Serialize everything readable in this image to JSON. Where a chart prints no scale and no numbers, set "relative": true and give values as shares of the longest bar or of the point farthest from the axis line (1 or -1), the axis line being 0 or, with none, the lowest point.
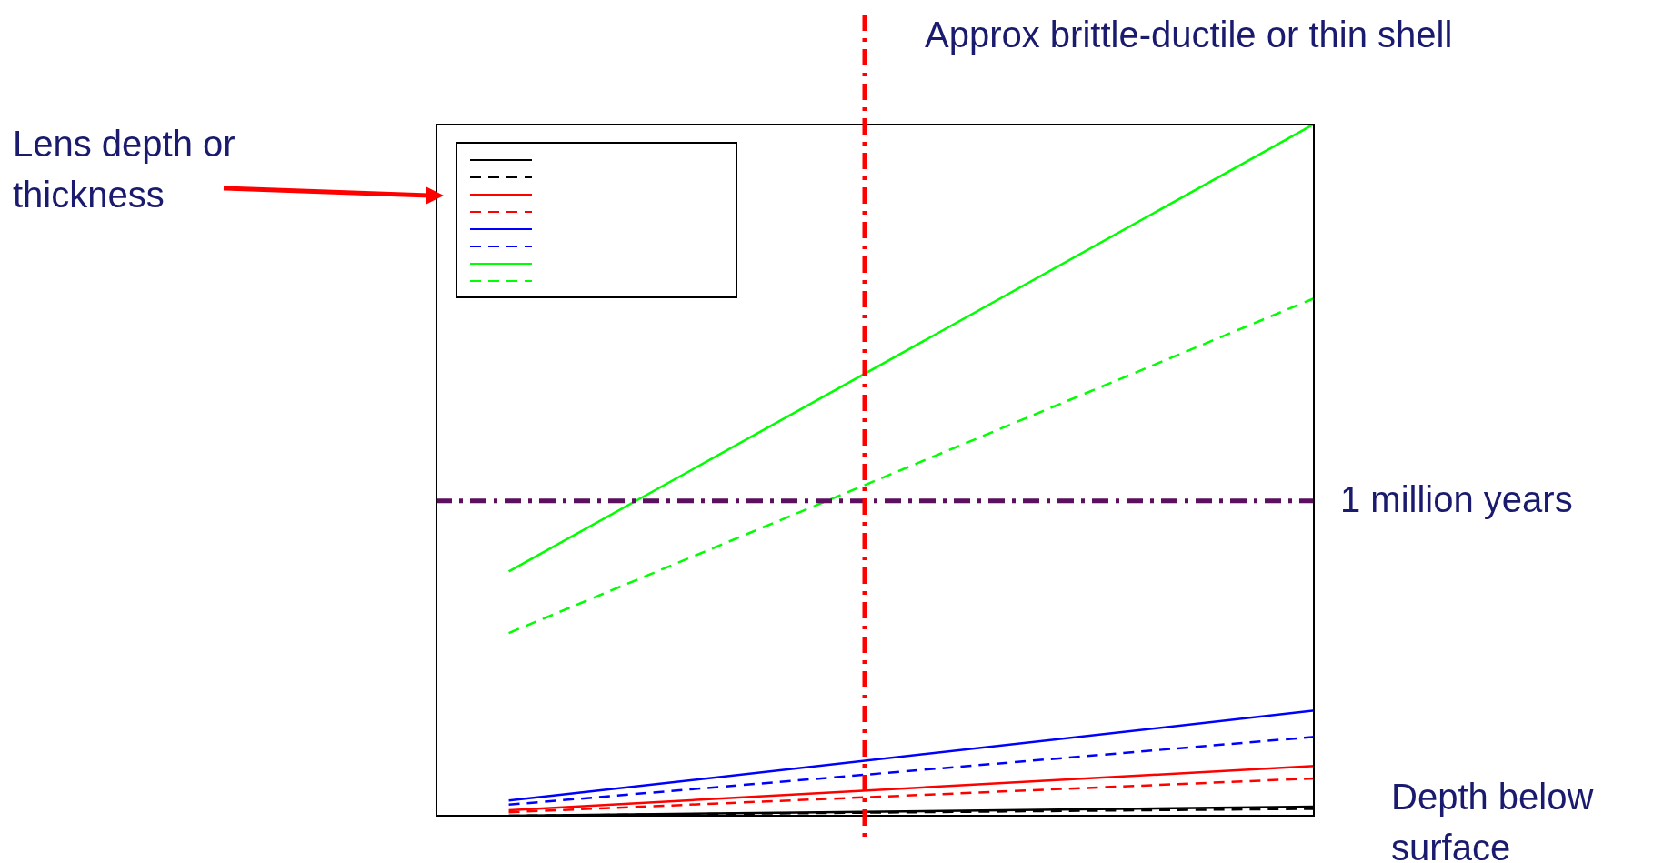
{
  "chart_data": {
    "type": "line",
    "relative": true,
    "xlabel": "Depth below surface",
    "annotations": [
      "Lens depth or thickness",
      "Approx brittle-ductile or thin shell"
    ],
    "categories": [
      null,
      null,
      null,
      null,
      null,
      null,
      null,
      null,
      null,
      null,
      null,
      null,
      null
    ],
    "series": [
      {
        "color": "#000000",
        "line_style": "solid",
        "values": [
          null,
          0,
          null,
          null,
          null,
          null,
          null,
          null,
          null,
          null,
          null,
          null,
          0.013
        ]
      },
      {
        "color": "#000000",
        "line_style": "dashed",
        "values": [
          null,
          0,
          null,
          null,
          null,
          null,
          null,
          null,
          null,
          null,
          null,
          null,
          0.01
        ]
      },
      {
        "color": "#ff0000",
        "line_style": "solid",
        "values": [
          null,
          0.008,
          null,
          null,
          null,
          null,
          null,
          null,
          null,
          null,
          null,
          null,
          0.072
        ]
      },
      {
        "color": "#ff0000",
        "line_style": "dashed",
        "values": [
          null,
          0.005,
          null,
          null,
          null,
          null,
          null,
          null,
          null,
          null,
          null,
          null,
          0.054
        ]
      },
      {
        "color": "#0000ff",
        "line_style": "solid",
        "values": [
          null,
          0.022,
          null,
          null,
          null,
          null,
          null,
          null,
          null,
          null,
          null,
          null,
          0.152
        ]
      },
      {
        "color": "#0000ff",
        "line_style": "dashed",
        "values": [
          null,
          0.016,
          null,
          null,
          null,
          null,
          null,
          null,
          null,
          null,
          null,
          null,
          0.114
        ]
      },
      {
        "color": "#00ff00",
        "line_style": "solid",
        "values": [
          null,
          0.353,
          null,
          null,
          null,
          null,
          null,
          null,
          null,
          null,
          null,
          null,
          1
        ]
      },
      {
        "color": "#00ff00",
        "line_style": "dashed",
        "values": [
          null,
          0.264,
          null,
          null,
          null,
          null,
          null,
          null,
          null,
          null,
          null,
          null,
          0.748
        ]
      }
    ],
    "ref_lines": [
      {
        "axis": "y",
        "value": 0.455,
        "label": "1 million years",
        "color": "#5b0f5f",
        "line_style": "dashed"
      }
    ],
    "marker": "none"
  }
}
